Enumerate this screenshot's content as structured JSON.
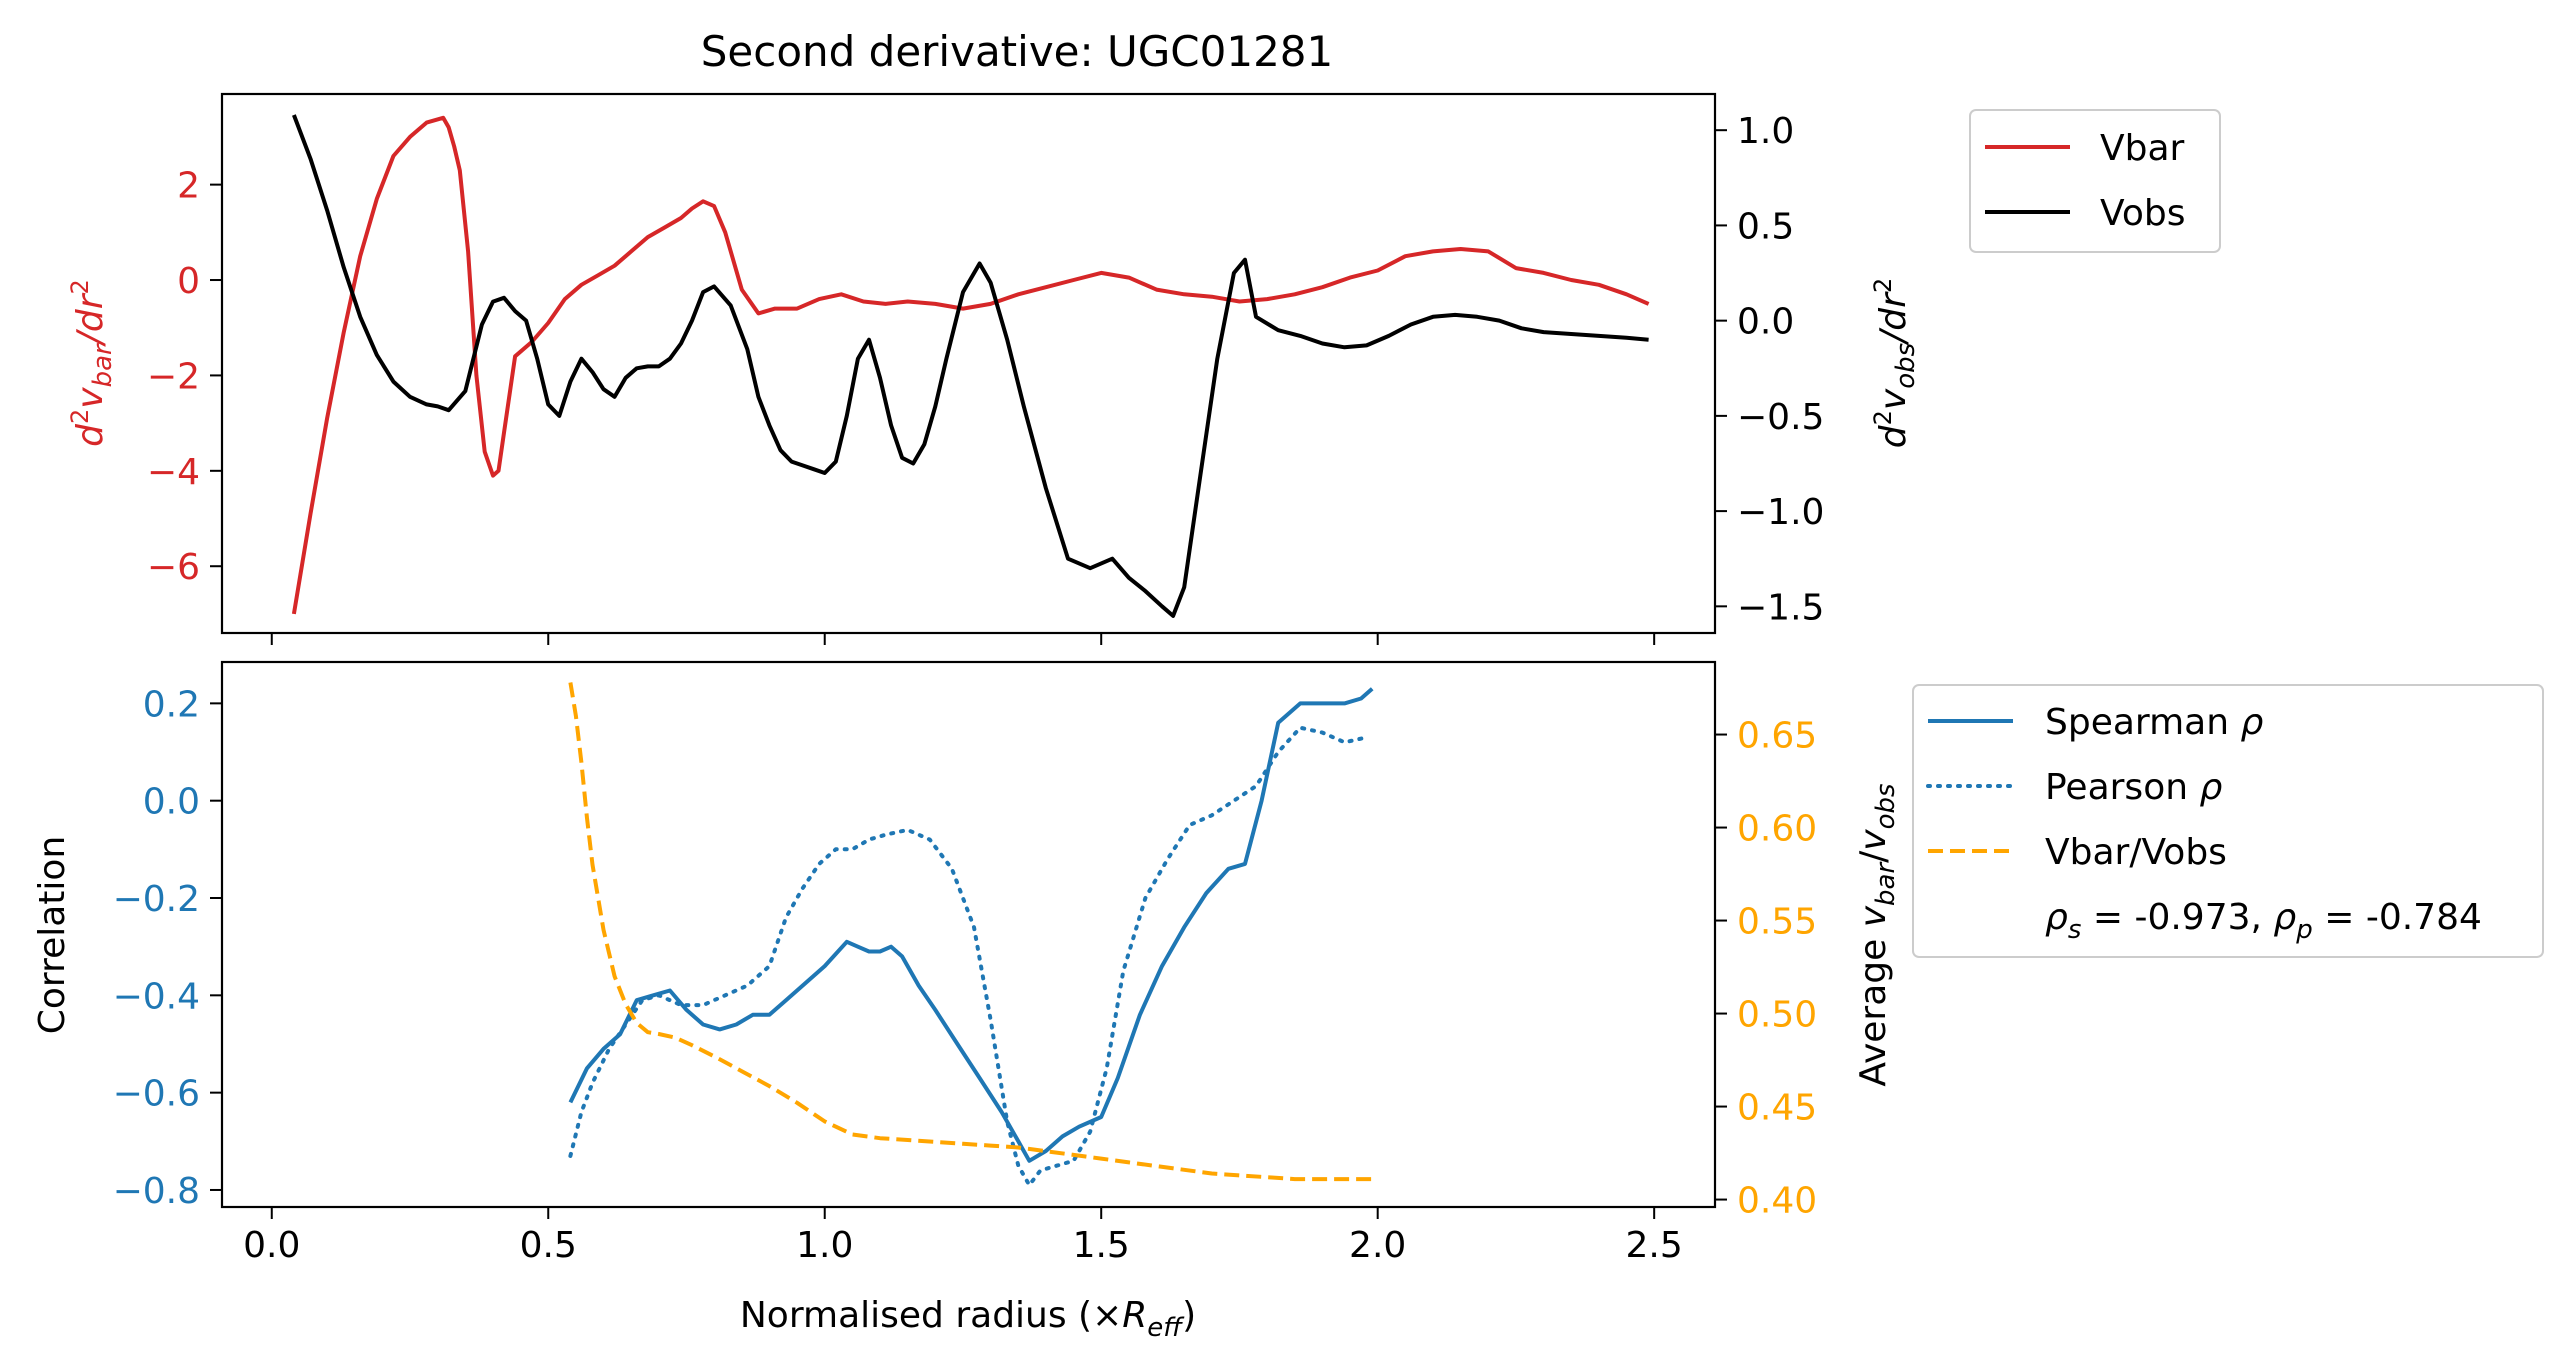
{
  "chart_data": [
    {
      "type": "line",
      "title": "Second derivative: UGC01281",
      "ylabel_left": "d²v_bar/dr²",
      "ylabel_right": "d²v_obs/dr²",
      "xlim": [
        -0.09,
        2.61
      ],
      "ylim_left": [
        -7.4,
        3.9
      ],
      "ylim_right": [
        -1.64,
        1.19
      ],
      "xticks": [
        0.0,
        0.5,
        1.0,
        1.5,
        2.0,
        2.5
      ],
      "yticks_left": [
        -6,
        -4,
        -2,
        0,
        2
      ],
      "yticks_left_labels": [
        "−6",
        "−4",
        "−2",
        "0",
        "2"
      ],
      "yticks_right": [
        -1.5,
        -1.0,
        -0.5,
        0.0,
        0.5,
        1.0
      ],
      "yticks_right_labels": [
        "−1.5",
        "−1.0",
        "−0.5",
        "0.0",
        "0.5",
        "1.0"
      ],
      "left_color": "#d62728",
      "series": [
        {
          "name": "Vbar",
          "axis": "left",
          "color": "#d62728",
          "style": "solid",
          "x": [
            0.04,
            0.07,
            0.1,
            0.13,
            0.16,
            0.19,
            0.22,
            0.25,
            0.28,
            0.31,
            0.32,
            0.33,
            0.34,
            0.355,
            0.37,
            0.385,
            0.4,
            0.41,
            0.42,
            0.44,
            0.47,
            0.5,
            0.53,
            0.56,
            0.59,
            0.62,
            0.65,
            0.68,
            0.71,
            0.74,
            0.76,
            0.78,
            0.8,
            0.82,
            0.85,
            0.88,
            0.91,
            0.95,
            0.99,
            1.03,
            1.07,
            1.11,
            1.15,
            1.2,
            1.25,
            1.3,
            1.35,
            1.4,
            1.45,
            1.5,
            1.55,
            1.6,
            1.65,
            1.7,
            1.75,
            1.8,
            1.85,
            1.9,
            1.95,
            2.0,
            2.05,
            2.1,
            2.15,
            2.2,
            2.25,
            2.3,
            2.35,
            2.4,
            2.45,
            2.49
          ],
          "y": [
            -7.0,
            -4.9,
            -2.9,
            -1.1,
            0.5,
            1.7,
            2.6,
            3.0,
            3.3,
            3.4,
            3.2,
            2.8,
            2.3,
            0.6,
            -2.0,
            -3.6,
            -4.1,
            -4.0,
            -3.2,
            -1.6,
            -1.3,
            -0.9,
            -0.4,
            -0.1,
            0.1,
            0.3,
            0.6,
            0.9,
            1.1,
            1.3,
            1.5,
            1.65,
            1.55,
            1.0,
            -0.2,
            -0.7,
            -0.6,
            -0.6,
            -0.4,
            -0.3,
            -0.45,
            -0.5,
            -0.45,
            -0.5,
            -0.6,
            -0.5,
            -0.3,
            -0.15,
            0.0,
            0.15,
            0.05,
            -0.2,
            -0.3,
            -0.35,
            -0.45,
            -0.4,
            -0.3,
            -0.15,
            0.05,
            0.2,
            0.5,
            0.6,
            0.65,
            0.6,
            0.25,
            0.15,
            0.0,
            -0.1,
            -0.3,
            -0.5
          ]
        },
        {
          "name": "Vobs",
          "axis": "right",
          "color": "#000000",
          "style": "solid",
          "x": [
            0.04,
            0.07,
            0.1,
            0.13,
            0.16,
            0.19,
            0.22,
            0.25,
            0.28,
            0.3,
            0.32,
            0.35,
            0.38,
            0.4,
            0.42,
            0.44,
            0.46,
            0.48,
            0.5,
            0.52,
            0.54,
            0.56,
            0.58,
            0.6,
            0.62,
            0.64,
            0.66,
            0.68,
            0.7,
            0.72,
            0.74,
            0.76,
            0.78,
            0.8,
            0.83,
            0.86,
            0.88,
            0.9,
            0.92,
            0.94,
            0.96,
            0.98,
            1.0,
            1.02,
            1.04,
            1.06,
            1.08,
            1.1,
            1.12,
            1.14,
            1.16,
            1.18,
            1.2,
            1.22,
            1.25,
            1.28,
            1.3,
            1.33,
            1.36,
            1.4,
            1.44,
            1.48,
            1.52,
            1.55,
            1.58,
            1.61,
            1.63,
            1.65,
            1.68,
            1.71,
            1.74,
            1.76,
            1.78,
            1.82,
            1.86,
            1.9,
            1.94,
            1.98,
            2.02,
            2.06,
            2.1,
            2.14,
            2.18,
            2.22,
            2.26,
            2.3,
            2.35,
            2.4,
            2.45,
            2.49
          ],
          "y": [
            1.08,
            0.85,
            0.58,
            0.28,
            0.02,
            -0.18,
            -0.32,
            -0.4,
            -0.44,
            -0.45,
            -0.47,
            -0.37,
            -0.02,
            0.1,
            0.12,
            0.05,
            0.0,
            -0.2,
            -0.44,
            -0.5,
            -0.32,
            -0.2,
            -0.27,
            -0.36,
            -0.4,
            -0.3,
            -0.25,
            -0.24,
            -0.24,
            -0.2,
            -0.12,
            0.0,
            0.15,
            0.18,
            0.08,
            -0.15,
            -0.4,
            -0.55,
            -0.68,
            -0.74,
            -0.76,
            -0.78,
            -0.8,
            -0.74,
            -0.5,
            -0.2,
            -0.1,
            -0.3,
            -0.55,
            -0.72,
            -0.75,
            -0.65,
            -0.45,
            -0.2,
            0.15,
            0.3,
            0.2,
            -0.1,
            -0.45,
            -0.88,
            -1.25,
            -1.3,
            -1.25,
            -1.35,
            -1.42,
            -1.5,
            -1.55,
            -1.4,
            -0.8,
            -0.2,
            0.25,
            0.32,
            0.02,
            -0.05,
            -0.08,
            -0.12,
            -0.14,
            -0.13,
            -0.08,
            -0.02,
            0.02,
            0.03,
            0.02,
            0.0,
            -0.04,
            -0.06,
            -0.07,
            -0.08,
            -0.09,
            -0.1
          ]
        }
      ],
      "legend": [
        "Vbar",
        "Vobs"
      ],
      "legend_placement": "outside right, top"
    },
    {
      "type": "line",
      "xlabel": "Normalised radius (×R_eff)",
      "ylabel_left": "Correlation",
      "ylabel_right": "Average v_bar/v_obs",
      "xlim": [
        -0.09,
        2.61
      ],
      "ylim_left": [
        -0.835,
        0.285
      ],
      "ylim_right": [
        0.396,
        0.689
      ],
      "xticks": [
        0.0,
        0.5,
        1.0,
        1.5,
        2.0,
        2.5
      ],
      "xticks_labels": [
        "0.0",
        "0.5",
        "1.0",
        "1.5",
        "2.0",
        "2.5"
      ],
      "yticks_left": [
        -0.8,
        -0.6,
        -0.4,
        -0.2,
        0.0,
        0.2
      ],
      "yticks_left_labels": [
        "−0.8",
        "−0.6",
        "−0.4",
        "−0.2",
        "0.0",
        "0.2"
      ],
      "yticks_right": [
        0.4,
        0.45,
        0.5,
        0.55,
        0.6,
        0.65
      ],
      "yticks_right_labels": [
        "0.40",
        "0.45",
        "0.50",
        "0.55",
        "0.60",
        "0.65"
      ],
      "left_color": "#1f77b4",
      "right_color": "#ffa500",
      "series": [
        {
          "name": "Spearman ρ",
          "axis": "left",
          "color": "#1f77b4",
          "style": "solid",
          "x": [
            0.54,
            0.57,
            0.6,
            0.63,
            0.66,
            0.69,
            0.72,
            0.75,
            0.78,
            0.81,
            0.84,
            0.87,
            0.9,
            0.93,
            0.96,
            1.0,
            1.04,
            1.06,
            1.08,
            1.1,
            1.12,
            1.14,
            1.17,
            1.2,
            1.24,
            1.28,
            1.32,
            1.35,
            1.37,
            1.4,
            1.43,
            1.46,
            1.5,
            1.53,
            1.57,
            1.61,
            1.65,
            1.69,
            1.73,
            1.76,
            1.79,
            1.82,
            1.86,
            1.9,
            1.94,
            1.97,
            1.99
          ],
          "y": [
            -0.62,
            -0.55,
            -0.51,
            -0.48,
            -0.41,
            -0.4,
            -0.39,
            -0.43,
            -0.46,
            -0.47,
            -0.46,
            -0.44,
            -0.44,
            -0.41,
            -0.38,
            -0.34,
            -0.29,
            -0.3,
            -0.31,
            -0.31,
            -0.3,
            -0.32,
            -0.38,
            -0.43,
            -0.5,
            -0.57,
            -0.64,
            -0.7,
            -0.74,
            -0.72,
            -0.69,
            -0.67,
            -0.65,
            -0.57,
            -0.44,
            -0.34,
            -0.26,
            -0.19,
            -0.14,
            -0.13,
            0.0,
            0.16,
            0.2,
            0.2,
            0.2,
            0.21,
            0.23
          ]
        },
        {
          "name": "Pearson ρ",
          "axis": "left",
          "color": "#1f77b4",
          "style": "dotted",
          "x": [
            0.54,
            0.56,
            0.58,
            0.61,
            0.64,
            0.67,
            0.7,
            0.74,
            0.78,
            0.82,
            0.86,
            0.9,
            0.93,
            0.96,
            0.99,
            1.02,
            1.05,
            1.08,
            1.11,
            1.15,
            1.19,
            1.23,
            1.27,
            1.3,
            1.33,
            1.35,
            1.37,
            1.39,
            1.42,
            1.45,
            1.48,
            1.51,
            1.54,
            1.58,
            1.62,
            1.66,
            1.7,
            1.74,
            1.78,
            1.82,
            1.86,
            1.9,
            1.94,
            1.98
          ],
          "y": [
            -0.73,
            -0.64,
            -0.58,
            -0.51,
            -0.46,
            -0.41,
            -0.4,
            -0.42,
            -0.42,
            -0.4,
            -0.38,
            -0.34,
            -0.24,
            -0.18,
            -0.13,
            -0.1,
            -0.1,
            -0.08,
            -0.07,
            -0.06,
            -0.08,
            -0.14,
            -0.26,
            -0.45,
            -0.66,
            -0.75,
            -0.79,
            -0.76,
            -0.75,
            -0.74,
            -0.68,
            -0.55,
            -0.35,
            -0.2,
            -0.12,
            -0.05,
            -0.03,
            0.0,
            0.03,
            0.1,
            0.15,
            0.14,
            0.12,
            0.13
          ]
        },
        {
          "name": "Vbar/Vobs",
          "axis": "right",
          "color": "#ffa500",
          "style": "dashed",
          "x": [
            0.54,
            0.55,
            0.56,
            0.57,
            0.58,
            0.6,
            0.62,
            0.64,
            0.66,
            0.68,
            0.7,
            0.73,
            0.76,
            0.8,
            0.85,
            0.9,
            0.95,
            1.0,
            1.05,
            1.1,
            1.15,
            1.2,
            1.25,
            1.3,
            1.35,
            1.4,
            1.45,
            1.5,
            1.55,
            1.6,
            1.65,
            1.7,
            1.75,
            1.8,
            1.85,
            1.9,
            1.95,
            1.99
          ],
          "y": [
            0.678,
            0.66,
            0.635,
            0.605,
            0.58,
            0.545,
            0.52,
            0.505,
            0.495,
            0.49,
            0.489,
            0.487,
            0.483,
            0.477,
            0.469,
            0.461,
            0.452,
            0.442,
            0.435,
            0.433,
            0.432,
            0.431,
            0.43,
            0.429,
            0.428,
            0.426,
            0.424,
            0.422,
            0.42,
            0.418,
            0.416,
            0.414,
            0.413,
            0.412,
            0.411,
            0.411,
            0.411,
            0.411
          ]
        }
      ],
      "legend": [
        "Spearman ρ",
        "Pearson ρ",
        "Vbar/Vobs"
      ],
      "annotation": "ρs = -0.973, ρp = -0.784",
      "legend_placement": "outside right, top"
    }
  ],
  "text": {
    "title": "Second derivative: UGC01281",
    "top_ylabel_left_main": "d",
    "top_ylabel_left_sup": "2",
    "top_ylabel_left_v": "v",
    "top_ylabel_left_sub": "bar",
    "top_ylabel_left_tail": "/dr",
    "top_ylabel_left_sup2": "2",
    "top_ylabel_right_main": "d",
    "top_ylabel_right_sup": "2",
    "top_ylabel_right_v": "v",
    "top_ylabel_right_sub": "obs",
    "top_ylabel_right_tail": "/dr",
    "top_ylabel_right_sup2": "2",
    "bottom_ylabel_left": "Correlation",
    "bottom_ylabel_right_main": "Average ",
    "bottom_ylabel_right_v1": "v",
    "bottom_ylabel_right_sub1": "bar",
    "bottom_ylabel_right_slash": "/",
    "bottom_ylabel_right_v2": "v",
    "bottom_ylabel_right_sub2": "obs",
    "xlabel_main": "Normalised radius (×",
    "xlabel_R": "R",
    "xlabel_sub": "eff",
    "xlabel_close": ")",
    "legend_top": [
      "Vbar",
      "Vobs"
    ],
    "legend_bottom": [
      "Spearman ",
      "Pearson ",
      "Vbar/Vobs"
    ],
    "legend_rho": "ρ",
    "annotation_rho": "ρ",
    "annotation_s": "s",
    "annotation_eq1": " = -0.973, ",
    "annotation_p": "p",
    "annotation_eq2": " = -0.784"
  }
}
